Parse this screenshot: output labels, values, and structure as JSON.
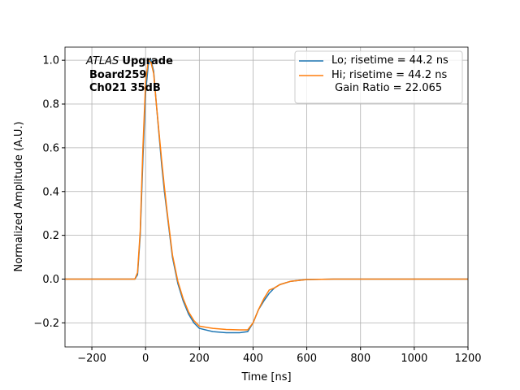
{
  "chart_data": {
    "type": "line",
    "xlabel": "Time [ns]",
    "ylabel": "Normalized Amplitude (A.U.)",
    "annotation": {
      "experiment": "ATLAS",
      "label": "Upgrade",
      "lines": [
        "Board259",
        "Ch021 35dB"
      ]
    },
    "x": [
      -300,
      -100,
      -40,
      -30,
      -20,
      -10,
      0,
      10,
      20,
      30,
      40,
      50,
      60,
      70,
      80,
      90,
      100,
      120,
      140,
      160,
      180,
      200,
      250,
      300,
      350,
      380,
      400,
      420,
      440,
      460,
      480,
      500,
      540,
      600,
      700,
      1200
    ],
    "series": [
      {
        "name": "Lo; risetime = 44.2 ns",
        "color": "#1f77b4",
        "values": [
          0,
          0,
          0,
          0.02,
          0.2,
          0.55,
          0.85,
          0.98,
          1.0,
          0.95,
          0.8,
          0.66,
          0.52,
          0.4,
          0.3,
          0.2,
          0.1,
          -0.02,
          -0.1,
          -0.16,
          -0.2,
          -0.225,
          -0.24,
          -0.245,
          -0.245,
          -0.24,
          -0.2,
          -0.14,
          -0.1,
          -0.065,
          -0.04,
          -0.025,
          -0.01,
          -0.002,
          0,
          0
        ]
      },
      {
        "name": "Hi; risetime = 44.2 ns\n Gain Ratio = 22.065",
        "color": "#ff7f0e",
        "values": [
          0,
          0,
          0,
          0.03,
          0.22,
          0.6,
          0.9,
          1.0,
          0.99,
          0.94,
          0.8,
          0.67,
          0.54,
          0.42,
          0.31,
          0.21,
          0.11,
          -0.01,
          -0.09,
          -0.15,
          -0.19,
          -0.215,
          -0.225,
          -0.23,
          -0.232,
          -0.232,
          -0.2,
          -0.14,
          -0.09,
          -0.05,
          -0.04,
          -0.025,
          -0.01,
          -0.002,
          0,
          0
        ]
      }
    ],
    "xlim": [
      -300,
      1200
    ],
    "ylim": [
      -0.31,
      1.06
    ],
    "xticks": [
      {
        "value": -200,
        "label": "−200"
      },
      0,
      200,
      400,
      600,
      800,
      1000,
      1200
    ],
    "yticks": [
      {
        "value": -0.2,
        "label": "−0.2"
      },
      {
        "value": 0,
        "label": "0.0"
      },
      0.2,
      0.4,
      0.6,
      0.8,
      {
        "value": 1,
        "label": "1.0"
      }
    ],
    "grid": true,
    "legend": "upper right"
  }
}
